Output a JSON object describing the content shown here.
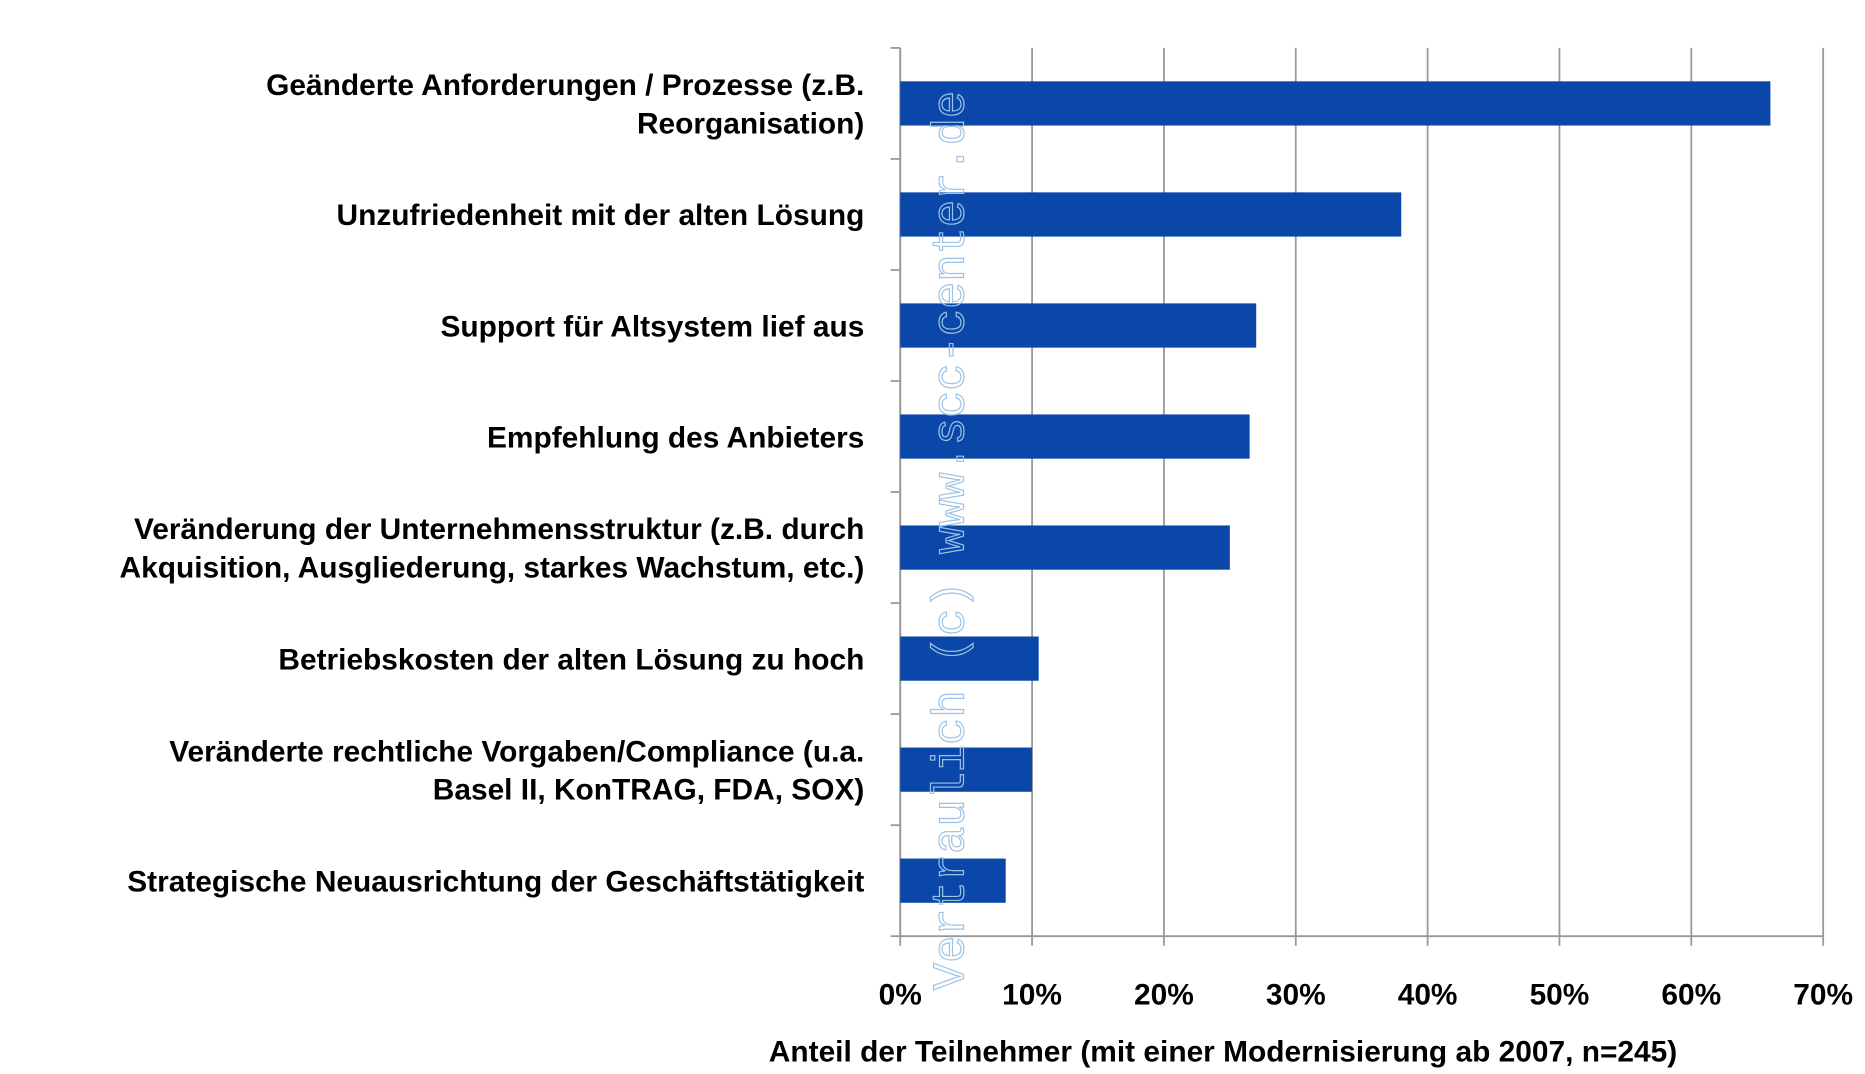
{
  "chart_data": {
    "type": "bar",
    "orientation": "horizontal",
    "categories": [
      "Geänderte  Anforderungen  / Prozesse (z.B.\nReorganisation)",
      "Unzufriedenheit mit der alten Lösung",
      "Support für Altsystem  lief aus",
      "Empfehlung des Anbieters",
      "Veränderung der Unternehmensstruktur  (z.B. durch\nAkquisition, Ausgliederung,  starkes Wachstum, etc.)",
      "Betriebskosten  der alten Lösung zu hoch",
      "Veränderte rechtliche  Vorgaben/Compliance  (u.a.\nBasel II, KonTRAG,  FDA, SOX)",
      "Strategische  Neuausrichtung  der Geschäftstätigkeit"
    ],
    "values": [
      66,
      38,
      27,
      26.5,
      25,
      10.5,
      10,
      8
    ],
    "color": "#0a47a8",
    "xlim": [
      0,
      70
    ],
    "xticks": [
      {
        "value": 0,
        "label": "0%"
      },
      {
        "value": 10,
        "label": "10%"
      },
      {
        "value": 20,
        "label": "20%"
      },
      {
        "value": 30,
        "label": "30%"
      },
      {
        "value": 40,
        "label": "40%"
      },
      {
        "value": 50,
        "label": "50%"
      },
      {
        "value": 60,
        "label": "60%"
      },
      {
        "value": 70,
        "label": "70%"
      }
    ],
    "xlabel": "Anteil der Teilnehmer (mit einer Modernisierung ab 2007, n=245)",
    "grid": true,
    "watermark": "Vertraulich (c) www.scc-center.de"
  }
}
